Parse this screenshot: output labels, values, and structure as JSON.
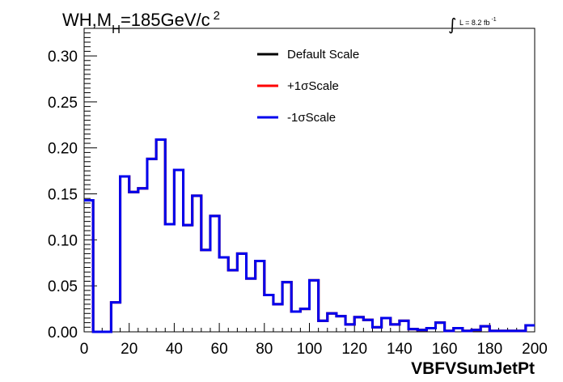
{
  "chart_data": {
    "type": "line",
    "style": "step-histogram",
    "title": "WH,M",
    "title_subscript": "H",
    "title_suffix": "=185GeV/c",
    "title_superscript": "2",
    "luminosity_label": "L = 8.2 fb",
    "luminosity_superscript": "-1",
    "xlabel": "VBFVSumJetPt",
    "ylabel": "",
    "xlim": [
      0,
      200
    ],
    "ylim": [
      0,
      0.33
    ],
    "x_ticks": [
      0,
      20,
      40,
      60,
      80,
      100,
      120,
      140,
      160,
      180,
      200
    ],
    "y_ticks": [
      "0.00",
      "0.05",
      "0.10",
      "0.15",
      "0.20",
      "0.25",
      "0.30"
    ],
    "bin_edges": [
      0,
      4,
      8,
      12,
      16,
      20,
      24,
      28,
      32,
      36,
      40,
      44,
      48,
      52,
      56,
      60,
      64,
      68,
      72,
      76,
      80,
      84,
      88,
      92,
      96,
      100,
      104,
      108,
      112,
      116,
      120,
      124,
      128,
      132,
      136,
      140,
      144,
      148,
      152,
      156,
      160,
      164,
      168,
      172,
      176,
      180,
      184,
      188,
      192,
      196,
      200
    ],
    "series": [
      {
        "name": "Default Scale",
        "color": "#000000",
        "values": [
          0.143,
          0.0,
          0.0,
          0.032,
          0.169,
          0.152,
          0.156,
          0.188,
          0.209,
          0.117,
          0.176,
          0.116,
          0.148,
          0.089,
          0.126,
          0.081,
          0.067,
          0.085,
          0.058,
          0.077,
          0.04,
          0.03,
          0.054,
          0.022,
          0.025,
          0.056,
          0.012,
          0.02,
          0.017,
          0.008,
          0.016,
          0.013,
          0.005,
          0.015,
          0.008,
          0.012,
          0.003,
          0.002,
          0.004,
          0.01,
          0.001,
          0.004,
          0.001,
          0.002,
          0.006,
          0.001,
          0.001,
          0.001,
          0.001,
          0.007
        ]
      },
      {
        "name": "+1σScale",
        "color": "#ff0000",
        "values": [
          0.143,
          0.0,
          0.0,
          0.032,
          0.169,
          0.152,
          0.156,
          0.188,
          0.209,
          0.117,
          0.176,
          0.116,
          0.148,
          0.089,
          0.126,
          0.081,
          0.067,
          0.085,
          0.058,
          0.077,
          0.04,
          0.03,
          0.054,
          0.022,
          0.025,
          0.056,
          0.012,
          0.02,
          0.017,
          0.008,
          0.016,
          0.013,
          0.005,
          0.015,
          0.008,
          0.012,
          0.003,
          0.002,
          0.004,
          0.01,
          0.001,
          0.004,
          0.001,
          0.002,
          0.006,
          0.001,
          0.001,
          0.001,
          0.001,
          0.007
        ]
      },
      {
        "name": "-1σScale",
        "color": "#0000ee",
        "values": [
          0.143,
          0.0,
          0.0,
          0.032,
          0.169,
          0.152,
          0.156,
          0.188,
          0.209,
          0.117,
          0.176,
          0.116,
          0.148,
          0.089,
          0.126,
          0.081,
          0.067,
          0.085,
          0.058,
          0.077,
          0.04,
          0.03,
          0.054,
          0.022,
          0.025,
          0.056,
          0.012,
          0.02,
          0.017,
          0.008,
          0.016,
          0.013,
          0.005,
          0.015,
          0.008,
          0.012,
          0.003,
          0.002,
          0.004,
          0.01,
          0.001,
          0.004,
          0.001,
          0.002,
          0.006,
          0.001,
          0.001,
          0.001,
          0.001,
          0.007
        ]
      }
    ],
    "legend_position": "top-center",
    "grid": false
  }
}
